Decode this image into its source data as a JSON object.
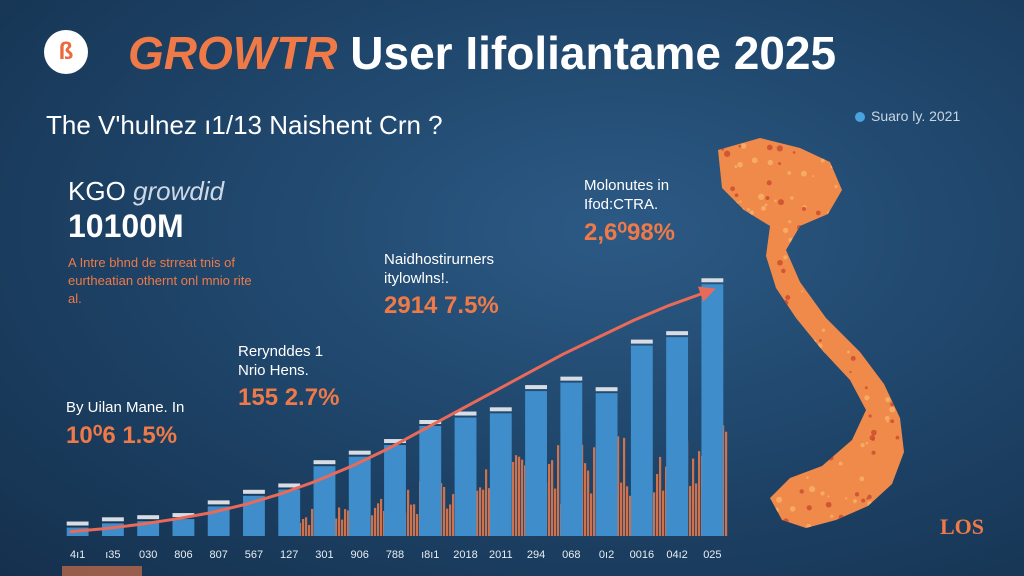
{
  "header": {
    "logo_glyph": "ß",
    "title_accent": "GROWTR",
    "title_rest": " User Iifoliantame 2025",
    "subtitle": "The V'hulnez ı1/13 Naishent Crn ?",
    "source": "Suaro ly. 2021"
  },
  "kpi": {
    "label_a": "KGO ",
    "label_b": "growdid",
    "value": "10100M",
    "note": "A Intre bhnd de strreat tnis of eurtheatian othernt onl mnio rite al."
  },
  "annotations": [
    {
      "text": "By Uilan Mane. In",
      "value": "10⁰6 1.5%"
    },
    {
      "text": "Rerynddes 1\nNrio Hens.",
      "value": "155 2.7%"
    },
    {
      "text": "Naidhostirurners\nitylowlns!.",
      "value": "2914 7.5%"
    },
    {
      "text": "Molonutes in\nIfod:CTRA.",
      "value": "2,6⁰98%"
    }
  ],
  "brand": "LOS",
  "colors": {
    "bar_blue": "#3f8ecb",
    "bar_cap": "#d8dde4",
    "bar_orange": "#ef7a48",
    "line": "#ea6a5a",
    "map": "#f08a4a"
  },
  "chart_data": {
    "type": "bar",
    "categories": [
      "4ı1",
      "ı35",
      "030",
      "806",
      "807",
      "567",
      "127",
      "301",
      "906",
      "788",
      "ı8ı1",
      "2018",
      "2011",
      "294",
      "068",
      "0ı2",
      "0016",
      "04ı2",
      "025"
    ],
    "series": [
      {
        "values": [
          8,
          12,
          14,
          16,
          28,
          38,
          44,
          66,
          75,
          86,
          104,
          112,
          116,
          137,
          145,
          135,
          180,
          188,
          238
        ]
      }
    ],
    "trend_line": [
      4,
      7,
      11,
      16,
      22,
      30,
      40,
      52,
      66,
      82,
      100,
      118,
      136,
      154,
      172,
      188,
      204,
      218,
      230
    ],
    "ylim": [
      0,
      260
    ]
  }
}
